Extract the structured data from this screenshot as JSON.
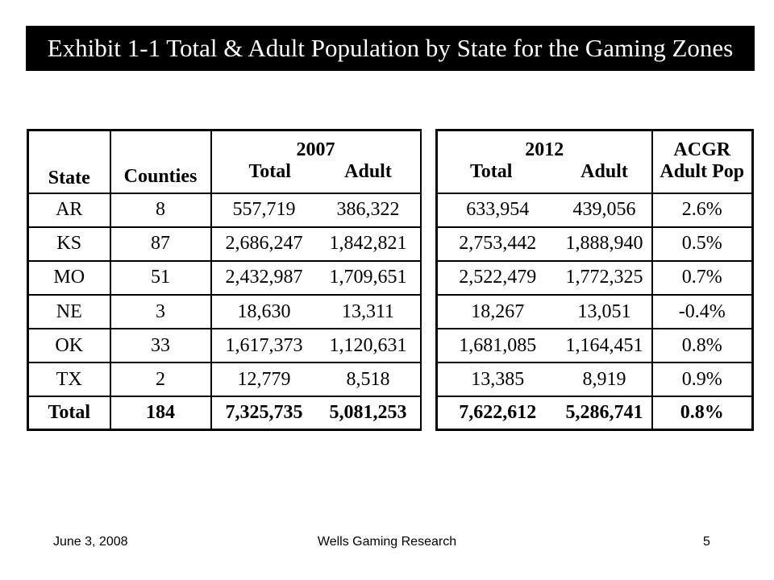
{
  "slide": {
    "title": "Exhibit 1-1 Total & Adult Population by State for the Gaming Zones"
  },
  "table": {
    "headers": {
      "state": "State",
      "counties": "Counties",
      "year_2007": "2007",
      "year_2012": "2012",
      "total": "Total",
      "adult": "Adult",
      "acgr": "ACGR",
      "adult_pop": "Adult Pop"
    },
    "rows": [
      {
        "state": "AR",
        "counties": "8",
        "total_2007": "557,719",
        "adult_2007": "386,322",
        "total_2012": "633,954",
        "adult_2012": "439,056",
        "acgr": "2.6%"
      },
      {
        "state": "KS",
        "counties": "87",
        "total_2007": "2,686,247",
        "adult_2007": "1,842,821",
        "total_2012": "2,753,442",
        "adult_2012": "1,888,940",
        "acgr": "0.5%"
      },
      {
        "state": "MO",
        "counties": "51",
        "total_2007": "2,432,987",
        "adult_2007": "1,709,651",
        "total_2012": "2,522,479",
        "adult_2012": "1,772,325",
        "acgr": "0.7%"
      },
      {
        "state": "NE",
        "counties": "3",
        "total_2007": "18,630",
        "adult_2007": "13,311",
        "total_2012": "18,267",
        "adult_2012": "13,051",
        "acgr": "-0.4%"
      },
      {
        "state": "OK",
        "counties": "33",
        "total_2007": "1,617,373",
        "adult_2007": "1,120,631",
        "total_2012": "1,681,085",
        "adult_2012": "1,164,451",
        "acgr": "0.8%"
      },
      {
        "state": "TX",
        "counties": "2",
        "total_2007": "12,779",
        "adult_2007": "8,518",
        "total_2012": "13,385",
        "adult_2012": "8,919",
        "acgr": "0.9%"
      }
    ],
    "total_row": {
      "state": "Total",
      "counties": "184",
      "total_2007": "7,325,735",
      "adult_2007": "5,081,253",
      "total_2012": "7,622,612",
      "adult_2012": "5,286,741",
      "acgr": "0.8%"
    }
  },
  "footer": {
    "date": "June 3, 2008",
    "company": "Wells Gaming Research",
    "page_number": "5"
  }
}
